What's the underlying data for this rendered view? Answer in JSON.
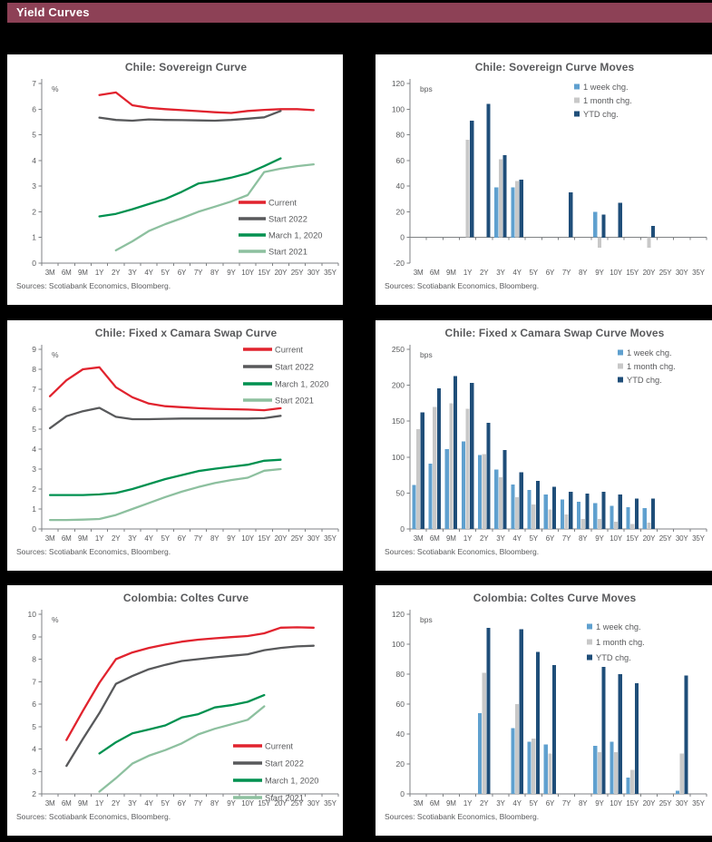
{
  "header": {
    "title": "Yield Curves",
    "bg_color": "#8d4156",
    "text_color": "#ffffff"
  },
  "palette": {
    "current": "#e1232e",
    "start_2022": "#58595b",
    "march_2020": "#009150",
    "start_2021": "#8dc09f",
    "week_chg": "#5fa0cf",
    "month_chg": "#c8c8c8",
    "ytd_chg": "#1f4e79",
    "axis": "#7f8284",
    "text": "#595a5c",
    "card_bg": "#ffffff",
    "page_bg": "#000000"
  },
  "chart_data": [
    {
      "type": "line",
      "title": "Chile: Sovereign Curve",
      "unit": "%",
      "ylim": [
        0,
        7
      ],
      "ytick_step": 1,
      "grid": false,
      "legend_position": "bottom-right",
      "sources": "Sources: Scotiabank Economics, Bloomberg.",
      "categories": [
        "3M",
        "6M",
        "9M",
        "1Y",
        "2Y",
        "3Y",
        "4Y",
        "5Y",
        "6Y",
        "7Y",
        "8Y",
        "9Y",
        "10Y",
        "15Y",
        "20Y",
        "25Y",
        "30Y",
        "35Y"
      ],
      "series": [
        {
          "name": "Current",
          "color": "#e1232e",
          "values": [
            null,
            null,
            null,
            6.55,
            6.65,
            6.15,
            6.05,
            6.0,
            5.96,
            5.92,
            5.88,
            5.85,
            5.93,
            5.97,
            6.0,
            6.0,
            5.96,
            null
          ]
        },
        {
          "name": "Start 2022",
          "color": "#58595b",
          "values": [
            null,
            null,
            null,
            5.67,
            5.58,
            5.55,
            5.6,
            5.58,
            5.57,
            5.56,
            5.55,
            5.58,
            5.63,
            5.68,
            5.93,
            null,
            null,
            null
          ]
        },
        {
          "name": "March 1, 2020",
          "color": "#009150",
          "values": [
            null,
            null,
            null,
            1.82,
            1.92,
            2.1,
            2.3,
            2.5,
            2.78,
            3.1,
            3.2,
            3.33,
            3.5,
            3.78,
            4.08,
            null,
            null,
            null
          ]
        },
        {
          "name": "Start 2021",
          "color": "#8dc09f",
          "values": [
            null,
            null,
            null,
            null,
            0.5,
            0.85,
            1.25,
            1.52,
            1.75,
            2.0,
            2.2,
            2.4,
            2.65,
            3.55,
            3.68,
            3.78,
            3.85,
            null
          ]
        }
      ]
    },
    {
      "type": "bar",
      "title": "Chile: Sovereign Curve Moves",
      "unit": "bps",
      "ylim": [
        -20,
        120
      ],
      "ytick_step": 20,
      "grid": false,
      "legend_position": "top-right",
      "sources": "Sources: Scotiabank Economics, Bloomberg.",
      "categories": [
        "3M",
        "6M",
        "9M",
        "1Y",
        "2Y",
        "3Y",
        "4Y",
        "5Y",
        "6Y",
        "7Y",
        "8Y",
        "9Y",
        "10Y",
        "15Y",
        "20Y",
        "25Y",
        "30Y",
        "35Y"
      ],
      "series": [
        {
          "name": "1 week chg.",
          "color": "#5fa0cf",
          "values": [
            null,
            null,
            null,
            null,
            null,
            39,
            39,
            null,
            null,
            null,
            null,
            20,
            null,
            null,
            null,
            null,
            null,
            null
          ]
        },
        {
          "name": "1 month chg.",
          "color": "#c8c8c8",
          "values": [
            null,
            null,
            null,
            76,
            null,
            61,
            44,
            null,
            null,
            null,
            null,
            -8,
            null,
            null,
            -8,
            null,
            null,
            null
          ]
        },
        {
          "name": "YTD chg.",
          "color": "#1f4e79",
          "values": [
            null,
            null,
            null,
            91,
            104,
            64,
            45,
            null,
            null,
            35,
            null,
            18,
            27,
            null,
            9,
            null,
            null,
            null
          ]
        }
      ]
    },
    {
      "type": "line",
      "title": "Chile: Fixed x Camara Swap Curve",
      "unit": "%",
      "ylim": [
        0,
        9
      ],
      "ytick_step": 1,
      "grid": false,
      "legend_position": "top-right",
      "sources": "Sources: Scotiabank Economics, Bloomberg.",
      "categories": [
        "3M",
        "6M",
        "9M",
        "1Y",
        "2Y",
        "3Y",
        "4Y",
        "5Y",
        "6Y",
        "7Y",
        "8Y",
        "9Y",
        "10Y",
        "15Y",
        "20Y",
        "25Y",
        "30Y",
        "35Y"
      ],
      "series": [
        {
          "name": "Current",
          "color": "#e1232e",
          "values": [
            6.65,
            7.45,
            8.0,
            8.1,
            7.1,
            6.6,
            6.28,
            6.15,
            6.1,
            6.05,
            6.02,
            6.0,
            5.98,
            5.95,
            6.05,
            null,
            null,
            null
          ]
        },
        {
          "name": "Start 2022",
          "color": "#58595b",
          "values": [
            5.05,
            5.65,
            5.9,
            6.07,
            5.62,
            5.5,
            5.5,
            5.52,
            5.53,
            5.53,
            5.53,
            5.53,
            5.53,
            5.55,
            5.67,
            null,
            null,
            null
          ]
        },
        {
          "name": "March 1, 2020",
          "color": "#009150",
          "values": [
            1.7,
            1.7,
            1.7,
            1.73,
            1.8,
            2.0,
            2.25,
            2.5,
            2.7,
            2.9,
            3.02,
            3.12,
            3.22,
            3.42,
            3.47,
            null,
            null,
            null
          ]
        },
        {
          "name": "Start 2021",
          "color": "#8dc09f",
          "values": [
            0.45,
            0.45,
            0.47,
            0.5,
            0.7,
            1.0,
            1.3,
            1.6,
            1.87,
            2.1,
            2.3,
            2.45,
            2.57,
            2.92,
            3.0,
            null,
            null,
            null
          ]
        }
      ]
    },
    {
      "type": "bar",
      "title": "Chile: Fixed x Camara Swap Curve Moves",
      "unit": "bps",
      "ylim": [
        0,
        250
      ],
      "ytick_step": 50,
      "grid": false,
      "legend_position": "top-right",
      "sources": "Sources: Scotiabank Economics, Bloomberg.",
      "categories": [
        "3M",
        "6M",
        "9M",
        "1Y",
        "2Y",
        "3Y",
        "4Y",
        "5Y",
        "6Y",
        "7Y",
        "8Y",
        "9Y",
        "10Y",
        "15Y",
        "20Y",
        "25Y",
        "30Y",
        "35Y"
      ],
      "series": [
        {
          "name": "1 week chg.",
          "color": "#5fa0cf",
          "values": [
            61,
            91,
            111,
            122,
            103,
            83,
            62,
            54,
            48,
            41,
            38,
            36,
            32,
            30,
            29,
            null,
            null,
            null
          ]
        },
        {
          "name": "1 month chg.",
          "color": "#c8c8c8",
          "values": [
            139,
            170,
            175,
            167,
            104,
            72,
            44,
            34,
            27,
            20,
            14,
            14,
            10,
            7,
            9,
            null,
            null,
            null
          ]
        },
        {
          "name": "YTD chg.",
          "color": "#1f4e79",
          "values": [
            162,
            196,
            213,
            203,
            148,
            110,
            79,
            67,
            59,
            52,
            49,
            52,
            48,
            42,
            42,
            null,
            null,
            null
          ]
        }
      ]
    },
    {
      "type": "line",
      "title": "Colombia: Coltes Curve",
      "unit": "%",
      "ylim": [
        2,
        10
      ],
      "ytick_step": 1,
      "grid": false,
      "legend_position": "bottom-right",
      "sources": "Sources: Scotiabank Economics, Bloomberg.",
      "categories": [
        "3M",
        "6M",
        "9M",
        "1Y",
        "2Y",
        "3Y",
        "4Y",
        "5Y",
        "6Y",
        "7Y",
        "8Y",
        "9Y",
        "10Y",
        "15Y",
        "20Y",
        "25Y",
        "30Y",
        "35Y"
      ],
      "series": [
        {
          "name": "Current",
          "color": "#e1232e",
          "values": [
            null,
            4.4,
            5.7,
            6.95,
            8.0,
            8.3,
            8.5,
            8.65,
            8.78,
            8.87,
            8.93,
            8.98,
            9.03,
            9.15,
            9.4,
            9.42,
            9.4,
            null
          ]
        },
        {
          "name": "Start 2022",
          "color": "#58595b",
          "values": [
            null,
            3.25,
            4.45,
            5.6,
            6.9,
            7.25,
            7.55,
            7.75,
            7.92,
            8.0,
            8.08,
            8.15,
            8.22,
            8.4,
            8.5,
            8.57,
            8.6,
            null
          ]
        },
        {
          "name": "March 1, 2020",
          "color": "#009150",
          "values": [
            null,
            null,
            null,
            3.8,
            4.3,
            4.7,
            4.87,
            5.05,
            5.4,
            5.55,
            5.85,
            5.95,
            6.1,
            6.4,
            null,
            null,
            null,
            null
          ]
        },
        {
          "name": "Start 2021",
          "color": "#8dc09f",
          "values": [
            null,
            null,
            null,
            2.1,
            2.7,
            3.35,
            3.7,
            3.95,
            4.25,
            4.65,
            4.9,
            5.1,
            5.3,
            5.9,
            null,
            null,
            null,
            null
          ]
        }
      ]
    },
    {
      "type": "bar",
      "title": "Colombia: Coltes Curve Moves",
      "unit": "bps",
      "ylim": [
        0,
        120
      ],
      "ytick_step": 20,
      "grid": false,
      "legend_position": "top-right",
      "sources": "Sources: Scotiabank Economics, Bloomberg.",
      "categories": [
        "3M",
        "6M",
        "9M",
        "1Y",
        "2Y",
        "3Y",
        "4Y",
        "5Y",
        "6Y",
        "7Y",
        "8Y",
        "9Y",
        "10Y",
        "15Y",
        "20Y",
        "25Y",
        "30Y",
        "35Y"
      ],
      "series": [
        {
          "name": "1 week chg.",
          "color": "#5fa0cf",
          "values": [
            null,
            null,
            null,
            null,
            54,
            null,
            44,
            35,
            33,
            null,
            null,
            32,
            35,
            11,
            null,
            null,
            2,
            null
          ]
        },
        {
          "name": "1 month chg.",
          "color": "#c8c8c8",
          "values": [
            null,
            null,
            null,
            null,
            81,
            null,
            60,
            37,
            27,
            null,
            null,
            28,
            28,
            16,
            null,
            null,
            27,
            null
          ]
        },
        {
          "name": "YTD chg.",
          "color": "#1f4e79",
          "values": [
            null,
            null,
            null,
            null,
            111,
            null,
            110,
            95,
            86,
            null,
            null,
            85,
            80,
            74,
            null,
            null,
            79,
            null
          ]
        }
      ]
    }
  ]
}
